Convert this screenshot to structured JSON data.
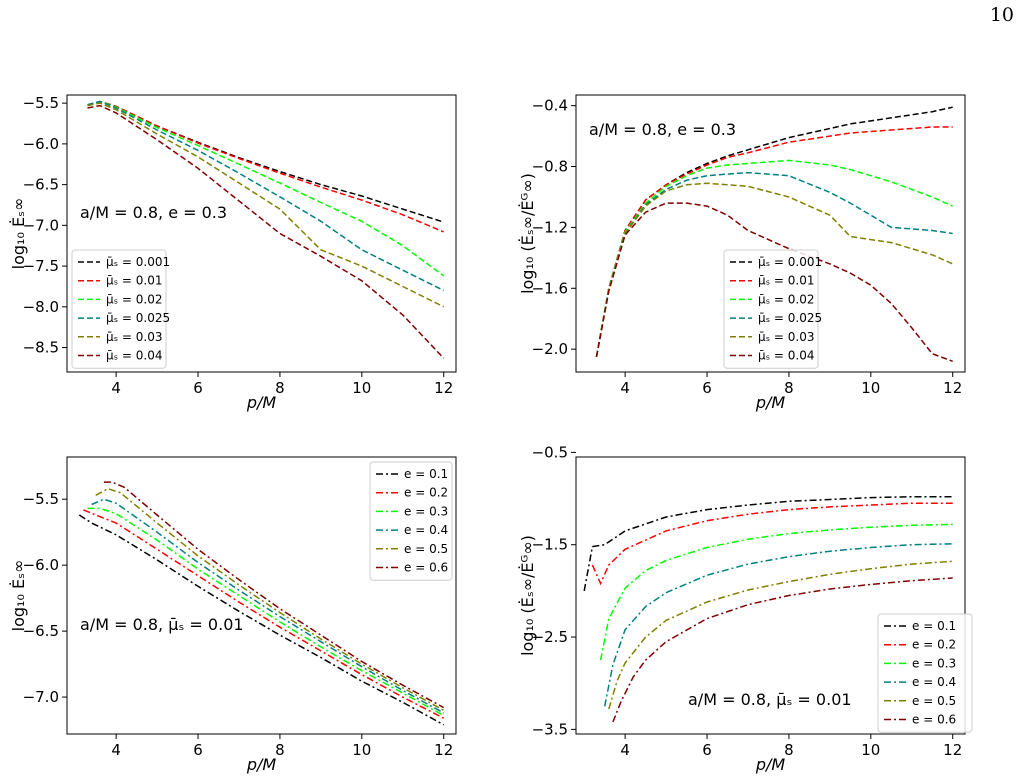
{
  "page_number": "10",
  "chart_data": [
    {
      "type": "line",
      "xlabel": "p/M",
      "ylabel": "log₁₀ Ėₛ∞",
      "xlim": [
        2.8,
        12.3
      ],
      "ylim": [
        -8.8,
        -5.4
      ],
      "xticks": [
        4,
        6,
        8,
        10,
        12
      ],
      "yticks": [
        -5.5,
        -6.0,
        -6.5,
        -7.0,
        -7.5,
        -8.0,
        -8.5
      ],
      "ytick_labels": [
        "−5.5",
        "−6.0",
        "−6.5",
        "−7.0",
        "−7.5",
        "−8.0",
        "−8.5"
      ],
      "line_style": "dashed",
      "legend_position": "lower-left",
      "annotation": "a/M = 0.8, e = 0.3",
      "x": [
        3.3,
        3.6,
        4.0,
        5.0,
        6.0,
        7.0,
        8.0,
        9.0,
        10.0,
        11.0,
        12.0
      ],
      "series": [
        {
          "name": "μ̄ₛ = 0.001",
          "color": "#000000",
          "values": [
            -5.52,
            -5.48,
            -5.54,
            -5.78,
            -5.98,
            -6.17,
            -6.34,
            -6.5,
            -6.64,
            -6.8,
            -6.96
          ]
        },
        {
          "name": "μ̄ₛ = 0.01",
          "color": "#ff0000",
          "values": [
            -5.52,
            -5.48,
            -5.54,
            -5.78,
            -5.99,
            -6.18,
            -6.36,
            -6.53,
            -6.69,
            -6.87,
            -7.08
          ]
        },
        {
          "name": "μ̄ₛ = 0.02",
          "color": "#00ff00",
          "values": [
            -5.52,
            -5.48,
            -5.55,
            -5.8,
            -6.02,
            -6.25,
            -6.48,
            -6.72,
            -6.95,
            -7.25,
            -7.62
          ]
        },
        {
          "name": "μ̄ₛ = 0.025",
          "color": "#008080",
          "values": [
            -5.52,
            -5.48,
            -5.56,
            -5.83,
            -6.08,
            -6.36,
            -6.65,
            -6.95,
            -7.3,
            -7.55,
            -7.8
          ]
        },
        {
          "name": "μ̄ₛ = 0.03",
          "color": "#808000",
          "values": [
            -5.53,
            -5.5,
            -5.58,
            -5.88,
            -6.16,
            -6.48,
            -6.8,
            -7.3,
            -7.5,
            -7.75,
            -8.0
          ]
        },
        {
          "name": "μ̄ₛ = 0.04",
          "color": "#800000",
          "values": [
            -5.56,
            -5.53,
            -5.62,
            -5.95,
            -6.3,
            -6.7,
            -7.1,
            -7.38,
            -7.68,
            -8.1,
            -8.63
          ]
        }
      ]
    },
    {
      "type": "line",
      "xlabel": "p/M",
      "ylabel": "log₁₀ (Ėₛ∞/Ėᴳ∞)",
      "xlim": [
        2.8,
        12.3
      ],
      "ylim": [
        -2.15,
        -0.33
      ],
      "xticks": [
        4,
        6,
        8,
        10,
        12
      ],
      "yticks": [
        -0.4,
        -0.8,
        -1.2,
        -1.6,
        -2.0
      ],
      "ytick_labels": [
        "−0.4",
        "−0.8",
        "−1.2",
        "−1.6",
        "−2.0"
      ],
      "line_style": "dashed",
      "legend_position": "lower-right",
      "annotation": "a/M = 0.8, e = 0.3",
      "x": [
        3.3,
        3.6,
        4.0,
        4.5,
        5.0,
        5.5,
        6.0,
        6.5,
        7.0,
        8.0,
        9.0,
        9.5,
        10.0,
        10.5,
        11.0,
        11.5,
        12.0
      ],
      "series": [
        {
          "name": "μ̄ₛ = 0.001",
          "color": "#000000",
          "values": [
            -2.05,
            -1.6,
            -1.22,
            -1.02,
            -0.92,
            -0.84,
            -0.78,
            -0.73,
            -0.69,
            -0.61,
            -0.55,
            -0.52,
            -0.5,
            -0.48,
            -0.46,
            -0.44,
            -0.41
          ]
        },
        {
          "name": "μ̄ₛ = 0.01",
          "color": "#ff0000",
          "values": [
            -2.05,
            -1.6,
            -1.22,
            -1.02,
            -0.92,
            -0.85,
            -0.79,
            -0.74,
            -0.71,
            -0.64,
            -0.6,
            -0.58,
            -0.57,
            -0.56,
            -0.55,
            -0.54,
            -0.54
          ]
        },
        {
          "name": "μ̄ₛ = 0.02",
          "color": "#00ff00",
          "values": [
            -2.05,
            -1.6,
            -1.23,
            -1.04,
            -0.93,
            -0.86,
            -0.81,
            -0.79,
            -0.78,
            -0.76,
            -0.79,
            -0.82,
            -0.86,
            -0.9,
            -0.95,
            -1.0,
            -1.06
          ]
        },
        {
          "name": "μ̄ₛ = 0.025",
          "color": "#008080",
          "values": [
            -2.05,
            -1.61,
            -1.24,
            -1.05,
            -0.95,
            -0.89,
            -0.86,
            -0.85,
            -0.84,
            -0.86,
            -0.97,
            -1.04,
            -1.12,
            -1.2,
            -1.21,
            -1.22,
            -1.24
          ]
        },
        {
          "name": "μ̄ₛ = 0.03",
          "color": "#808000",
          "values": [
            -2.05,
            -1.61,
            -1.24,
            -1.06,
            -0.96,
            -0.92,
            -0.91,
            -0.92,
            -0.93,
            -1.0,
            -1.12,
            -1.26,
            -1.28,
            -1.3,
            -1.34,
            -1.38,
            -1.44
          ]
        },
        {
          "name": "μ̄ₛ = 0.04",
          "color": "#800000",
          "values": [
            -2.05,
            -1.62,
            -1.25,
            -1.1,
            -1.04,
            -1.04,
            -1.06,
            -1.12,
            -1.22,
            -1.34,
            -1.44,
            -1.5,
            -1.58,
            -1.7,
            -1.86,
            -2.03,
            -2.08
          ]
        }
      ]
    },
    {
      "type": "line",
      "xlabel": "p/M",
      "ylabel": "log₁₀ Ėₛ∞",
      "xlim": [
        2.8,
        12.3
      ],
      "ylim": [
        -7.28,
        -5.18
      ],
      "xticks": [
        4,
        6,
        8,
        10,
        12
      ],
      "yticks": [
        -5.5,
        -6.0,
        -6.5,
        -7.0
      ],
      "ytick_labels": [
        "−5.5",
        "−6.0",
        "−6.5",
        "−7.0"
      ],
      "line_style": "dashdot",
      "legend_position": "top-right",
      "annotation": "a/M = 0.8, μ̄ₛ = 0.01",
      "x_per_series": true,
      "series": [
        {
          "name": "e = 0.1",
          "color": "#000000",
          "x": [
            3.1,
            3.4,
            4.0,
            5.0,
            6.0,
            7.0,
            8.0,
            9.0,
            10.0,
            11.0,
            12.0
          ],
          "values": [
            -5.62,
            -5.68,
            -5.77,
            -5.96,
            -6.16,
            -6.35,
            -6.53,
            -6.7,
            -6.88,
            -7.04,
            -7.21
          ]
        },
        {
          "name": "e = 0.2",
          "color": "#ff0000",
          "x": [
            3.2,
            3.5,
            4.0,
            5.0,
            6.0,
            7.0,
            8.0,
            9.0,
            10.0,
            11.0,
            12.0
          ],
          "values": [
            -5.58,
            -5.62,
            -5.68,
            -5.88,
            -6.08,
            -6.28,
            -6.47,
            -6.65,
            -6.83,
            -7.0,
            -7.16
          ]
        },
        {
          "name": "e = 0.3",
          "color": "#00ff00",
          "x": [
            3.3,
            3.6,
            4.0,
            5.0,
            6.0,
            7.0,
            8.0,
            9.0,
            10.0,
            11.0,
            12.0
          ],
          "values": [
            -5.57,
            -5.57,
            -5.61,
            -5.81,
            -6.03,
            -6.23,
            -6.43,
            -6.62,
            -6.8,
            -6.97,
            -7.14
          ]
        },
        {
          "name": "e = 0.4",
          "color": "#008080",
          "x": [
            3.4,
            3.7,
            4.0,
            5.0,
            6.0,
            7.0,
            8.0,
            9.0,
            10.0,
            11.0,
            12.0
          ],
          "values": [
            -5.54,
            -5.5,
            -5.53,
            -5.75,
            -5.98,
            -6.19,
            -6.39,
            -6.58,
            -6.77,
            -6.95,
            -7.12
          ]
        },
        {
          "name": "e = 0.5",
          "color": "#808000",
          "x": [
            3.5,
            3.8,
            4.1,
            5.0,
            6.0,
            7.0,
            8.0,
            9.0,
            10.0,
            11.0,
            12.0
          ],
          "values": [
            -5.47,
            -5.42,
            -5.45,
            -5.68,
            -5.93,
            -6.15,
            -6.36,
            -6.56,
            -6.75,
            -6.93,
            -7.1
          ]
        },
        {
          "name": "e = 0.6",
          "color": "#800000",
          "x": [
            3.7,
            3.9,
            4.2,
            5.0,
            6.0,
            7.0,
            8.0,
            9.0,
            10.0,
            11.0,
            12.0
          ],
          "values": [
            -5.37,
            -5.37,
            -5.41,
            -5.62,
            -5.88,
            -6.11,
            -6.33,
            -6.53,
            -6.73,
            -6.91,
            -7.08
          ]
        }
      ]
    },
    {
      "type": "line",
      "xlabel": "p/M",
      "ylabel": "log₁₀ (Ėₛ∞/Ėᴳ∞)",
      "xlim": [
        2.8,
        12.3
      ],
      "ylim": [
        -3.55,
        -0.55
      ],
      "xticks": [
        4,
        6,
        8,
        10,
        12
      ],
      "yticks": [
        -0.5,
        -1.5,
        -2.5,
        -3.5
      ],
      "ytick_labels": [
        "−0.5",
        "−1.5",
        "−2.5",
        "−3.5"
      ],
      "line_style": "dashdot",
      "legend_position": "lower-right",
      "annotation": "a/M = 0.8, μ̄ₛ = 0.01",
      "x_per_series": true,
      "series": [
        {
          "name": "e = 0.1",
          "color": "#000000",
          "x": [
            3.0,
            3.2,
            3.5,
            4.0,
            5.0,
            6.0,
            7.0,
            8.0,
            9.0,
            10.0,
            11.0,
            12.0
          ],
          "values": [
            -2.0,
            -1.52,
            -1.5,
            -1.35,
            -1.2,
            -1.12,
            -1.07,
            -1.03,
            -1.01,
            -0.99,
            -0.98,
            -0.98
          ]
        },
        {
          "name": "e = 0.2",
          "color": "#ff0000",
          "x": [
            3.2,
            3.4,
            3.6,
            4.0,
            5.0,
            6.0,
            7.0,
            8.0,
            9.0,
            10.0,
            11.0,
            12.0
          ],
          "values": [
            -1.72,
            -1.92,
            -1.72,
            -1.55,
            -1.35,
            -1.24,
            -1.17,
            -1.12,
            -1.09,
            -1.07,
            -1.05,
            -1.05
          ]
        },
        {
          "name": "e = 0.3",
          "color": "#00ff00",
          "x": [
            3.4,
            3.6,
            4.0,
            4.5,
            5.0,
            6.0,
            7.0,
            8.0,
            9.0,
            10.0,
            11.0,
            12.0
          ],
          "values": [
            -2.75,
            -2.3,
            -1.97,
            -1.78,
            -1.67,
            -1.53,
            -1.44,
            -1.38,
            -1.34,
            -1.31,
            -1.29,
            -1.28
          ]
        },
        {
          "name": "e = 0.4",
          "color": "#008080",
          "x": [
            3.5,
            3.7,
            4.0,
            4.5,
            5.0,
            6.0,
            7.0,
            8.0,
            9.0,
            10.0,
            11.0,
            12.0
          ],
          "values": [
            -3.25,
            -2.8,
            -2.42,
            -2.17,
            -2.02,
            -1.83,
            -1.71,
            -1.63,
            -1.57,
            -1.53,
            -1.5,
            -1.49
          ]
        },
        {
          "name": "e = 0.5",
          "color": "#808000",
          "x": [
            3.6,
            3.8,
            4.0,
            4.5,
            5.0,
            6.0,
            7.0,
            8.0,
            9.0,
            10.0,
            11.0,
            12.0
          ],
          "values": [
            -3.28,
            -2.98,
            -2.78,
            -2.5,
            -2.32,
            -2.12,
            -1.99,
            -1.9,
            -1.82,
            -1.76,
            -1.71,
            -1.68
          ]
        },
        {
          "name": "e = 0.6",
          "color": "#800000",
          "x": [
            3.7,
            3.9,
            4.2,
            4.5,
            5.0,
            6.0,
            7.0,
            8.0,
            9.0,
            10.0,
            11.0,
            12.0
          ],
          "values": [
            -3.42,
            -3.2,
            -2.93,
            -2.75,
            -2.55,
            -2.3,
            -2.15,
            -2.05,
            -1.98,
            -1.93,
            -1.89,
            -1.86
          ]
        }
      ]
    }
  ]
}
